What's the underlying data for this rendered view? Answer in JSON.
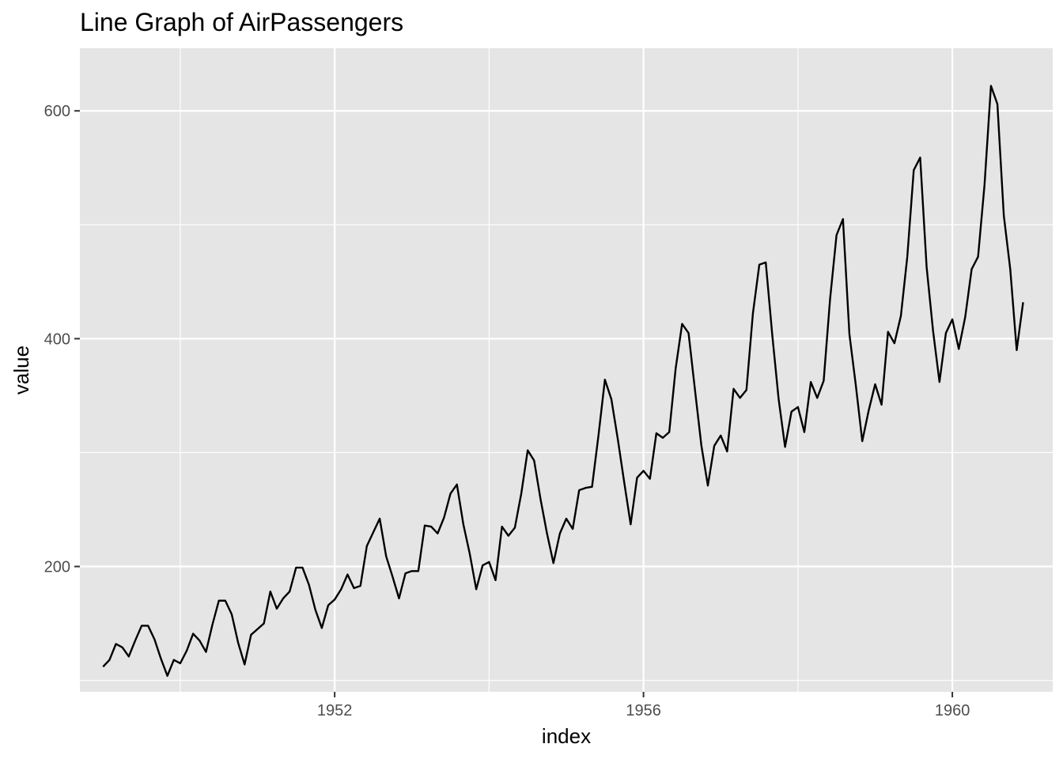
{
  "chart_data": {
    "type": "line",
    "title": "Line Graph of AirPassengers",
    "xlabel": "index",
    "ylabel": "value",
    "xlim": [
      1948.7,
      1961.3
    ],
    "ylim": [
      90,
      655
    ],
    "x_ticks": [
      {
        "value": 1952,
        "label": "1952"
      },
      {
        "value": 1956,
        "label": "1956"
      },
      {
        "value": 1960,
        "label": "1960"
      }
    ],
    "y_ticks": [
      {
        "value": 200,
        "label": "200"
      },
      {
        "value": 400,
        "label": "400"
      },
      {
        "value": 600,
        "label": "600"
      }
    ],
    "x_minor": [
      1950,
      1954,
      1958
    ],
    "y_minor": [
      100,
      300,
      500
    ],
    "grid": true,
    "background": "#e5e5e5",
    "grid_color": "#ffffff",
    "line_color": "#000000",
    "series": [
      {
        "x_start": 1949.0,
        "x_step": 0.0833333,
        "values": [
          112,
          118,
          132,
          129,
          121,
          135,
          148,
          148,
          136,
          119,
          104,
          118,
          115,
          126,
          141,
          135,
          125,
          149,
          170,
          170,
          158,
          133,
          114,
          140,
          145,
          150,
          178,
          163,
          172,
          178,
          199,
          199,
          184,
          162,
          146,
          166,
          171,
          180,
          193,
          181,
          183,
          218,
          230,
          242,
          209,
          191,
          172,
          194,
          196,
          196,
          236,
          235,
          229,
          243,
          264,
          272,
          237,
          211,
          180,
          201,
          204,
          188,
          235,
          227,
          234,
          264,
          302,
          293,
          259,
          229,
          203,
          229,
          242,
          233,
          267,
          269,
          270,
          315,
          364,
          347,
          312,
          274,
          237,
          278,
          284,
          277,
          317,
          313,
          318,
          374,
          413,
          405,
          355,
          306,
          271,
          306,
          315,
          301,
          356,
          348,
          355,
          422,
          465,
          467,
          404,
          347,
          305,
          336,
          340,
          318,
          362,
          348,
          363,
          435,
          491,
          505,
          404,
          359,
          310,
          337,
          360,
          342,
          406,
          396,
          420,
          472,
          548,
          559,
          463,
          407,
          362,
          405,
          417,
          391,
          419,
          461,
          472,
          535,
          622,
          606,
          508,
          461,
          390,
          432
        ]
      }
    ]
  }
}
